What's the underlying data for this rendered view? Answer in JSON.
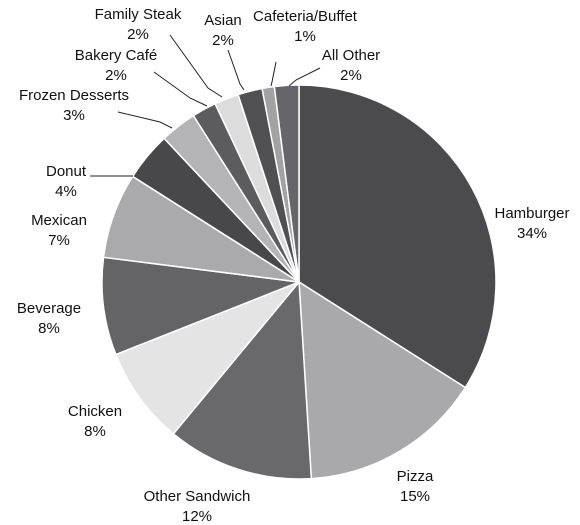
{
  "chart_data": {
    "type": "pie",
    "title": "",
    "start_angle_deg": 0,
    "direction": "clockwise",
    "slices": [
      {
        "label": "Hamburger",
        "value": 34,
        "value_text": "34%",
        "color": "#4b4b4e"
      },
      {
        "label": "Pizza",
        "value": 15,
        "value_text": "15%",
        "color": "#a9a9ab"
      },
      {
        "label": "Other Sandwich",
        "value": 12,
        "value_text": "12%",
        "color": "#69696c"
      },
      {
        "label": "Chicken",
        "value": 8,
        "value_text": "8%",
        "color": "#e4e4e5"
      },
      {
        "label": "Beverage",
        "value": 8,
        "value_text": "8%",
        "color": "#646467"
      },
      {
        "label": "Mexican",
        "value": 7,
        "value_text": "7%",
        "color": "#aaaaac"
      },
      {
        "label": "Donut",
        "value": 4,
        "value_text": "4%",
        "color": "#48484b"
      },
      {
        "label": "Frozen Desserts",
        "value": 3,
        "value_text": "3%",
        "color": "#b4b4b6"
      },
      {
        "label": "Bakery Café",
        "value": 2,
        "value_text": "2%",
        "color": "#5c5c5f"
      },
      {
        "label": "Family Steak",
        "value": 2,
        "value_text": "2%",
        "color": "#dcdcdd"
      },
      {
        "label": "Asian",
        "value": 2,
        "value_text": "2%",
        "color": "#505053"
      },
      {
        "label": "Cafeteria/Buffet",
        "value": 1,
        "value_text": "1%",
        "color": "#a2a2a4"
      },
      {
        "label": "All Other",
        "value": 2,
        "value_text": "2%",
        "color": "#66666a"
      }
    ]
  }
}
